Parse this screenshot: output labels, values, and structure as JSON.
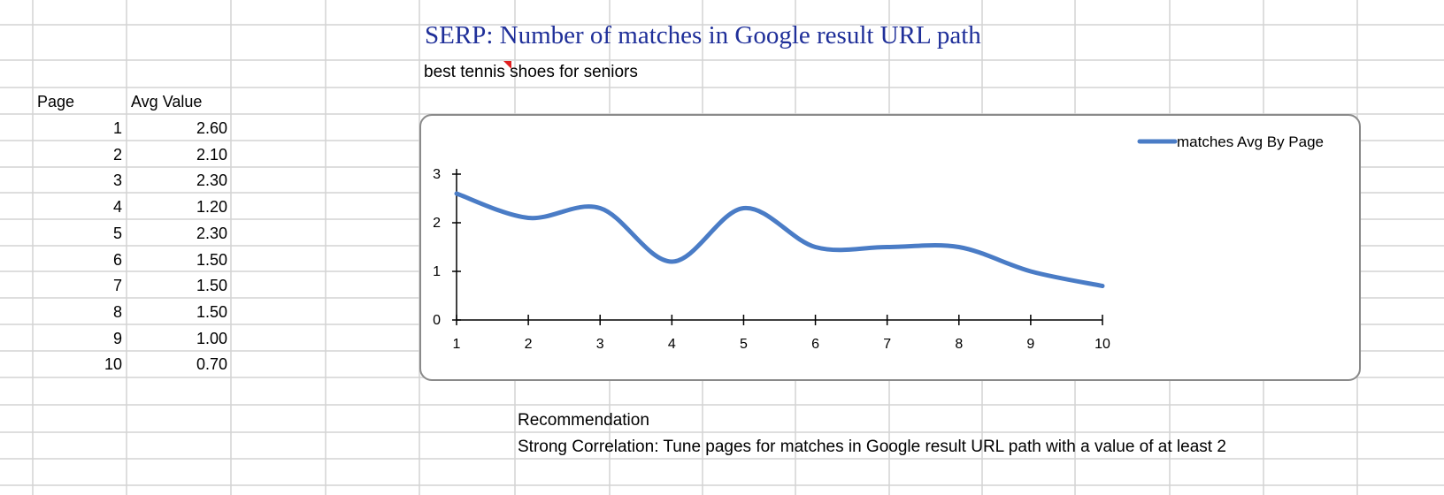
{
  "sheet": {
    "title": "SERP: Number of matches in Google result URL path",
    "subtitle": "best tennis shoes for seniors",
    "table": {
      "headers": [
        "Page",
        "Avg Value"
      ],
      "rows": [
        {
          "page": "1",
          "value": "2.60"
        },
        {
          "page": "2",
          "value": "2.10"
        },
        {
          "page": "3",
          "value": "2.30"
        },
        {
          "page": "4",
          "value": "1.20"
        },
        {
          "page": "5",
          "value": "2.30"
        },
        {
          "page": "6",
          "value": "1.50"
        },
        {
          "page": "7",
          "value": "1.50"
        },
        {
          "page": "8",
          "value": "1.50"
        },
        {
          "page": "9",
          "value": "1.00"
        },
        {
          "page": "10",
          "value": "0.70"
        }
      ]
    },
    "recommendation_label": "Recommendation",
    "recommendation_text": "Strong Correlation: Tune pages for matches in Google result URL path with a value of at least 2"
  },
  "chart_data": {
    "type": "line",
    "title": "",
    "xlabel": "",
    "ylabel": "",
    "x": [
      1,
      2,
      3,
      4,
      5,
      6,
      7,
      8,
      9,
      10
    ],
    "series": [
      {
        "name": "matches Avg By Page",
        "values": [
          2.6,
          2.1,
          2.3,
          1.2,
          2.3,
          1.5,
          1.5,
          1.5,
          1.0,
          0.7
        ],
        "color": "#4a7cc6"
      }
    ],
    "xticks": [
      "1",
      "2",
      "3",
      "4",
      "5",
      "6",
      "7",
      "8",
      "9",
      "10"
    ],
    "yticks": [
      "0",
      "1",
      "2",
      "3"
    ],
    "ylim": [
      0,
      3
    ],
    "xlim": [
      1,
      10
    ],
    "grid": false,
    "legend": "top-right",
    "smooth": true
  },
  "colors": {
    "grid_line": "#d4d4d4",
    "title": "#1f2f99",
    "series": "#4a7cc6",
    "comment_marker": "#e02020"
  }
}
